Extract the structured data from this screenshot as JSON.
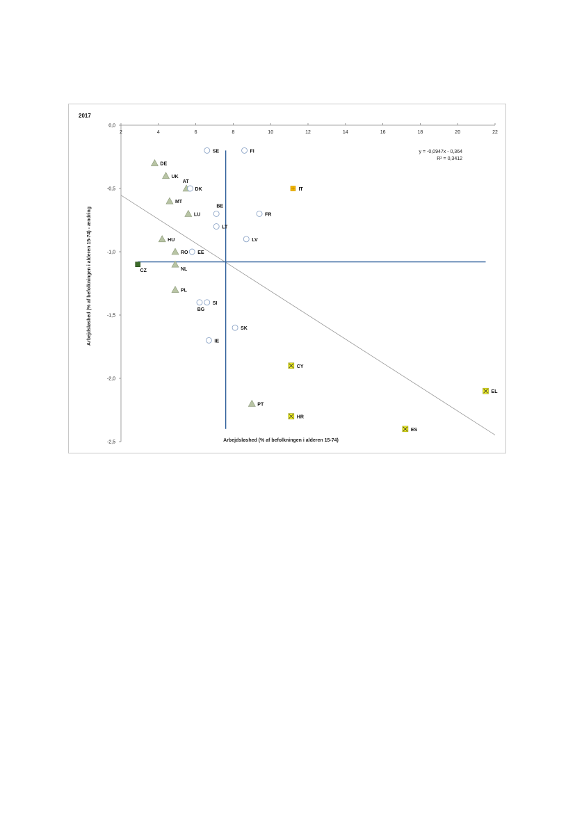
{
  "chart_data": {
    "type": "scatter",
    "title": "2017",
    "xlabel": "Arbejdsløshed  (% af befolkningen i alderen 15-74)",
    "ylabel": "Arbejdsløshed  (% af befolkningen i alderen 15-74) - ændring",
    "xlim": [
      2,
      22
    ],
    "ylim": [
      -2.5,
      0.0
    ],
    "x_ticks": [
      2,
      4,
      6,
      8,
      10,
      12,
      14,
      16,
      18,
      20,
      22
    ],
    "y_ticks": [
      0.0,
      -0.5,
      -1.0,
      -1.5,
      -2.0,
      -2.5
    ],
    "x_tick_labels": [
      "2",
      "4",
      "6",
      "8",
      "10",
      "12",
      "14",
      "16",
      "18",
      "20",
      "22"
    ],
    "y_tick_labels": [
      "0,0",
      "-0,5",
      "-1,0",
      "-1,5",
      "-2,0",
      "-2,5"
    ],
    "trendline": {
      "slope": -0.0947,
      "intercept": -0.364,
      "equation_label": "y = -0,0947x - 0,364",
      "r2_label": "R² = 0,3412"
    },
    "reference_lines": {
      "x": 7.6,
      "y": -1.08
    },
    "marker_colors": {
      "triangle": "#b8c4a4",
      "circle": "#ffffff",
      "circle_stroke": "#8ea6c8",
      "square_dark": "#3d6b2a",
      "square_orange": "#f5b800",
      "square_yellow": "#eeee22",
      "line_blue": "#2e5f9a",
      "trend_gray": "#9a9a9a"
    },
    "points": [
      {
        "label": "SE",
        "x": 6.6,
        "y": -0.2,
        "marker": "circle"
      },
      {
        "label": "FI",
        "x": 8.6,
        "y": -0.2,
        "marker": "circle"
      },
      {
        "label": "DE",
        "x": 3.8,
        "y": -0.3,
        "marker": "triangle"
      },
      {
        "label": "UK",
        "x": 4.4,
        "y": -0.4,
        "marker": "triangle"
      },
      {
        "label": "AT",
        "x": 5.5,
        "y": -0.5,
        "marker": "triangle"
      },
      {
        "label": "DK",
        "x": 5.7,
        "y": -0.5,
        "marker": "circle"
      },
      {
        "label": "IT",
        "x": 11.2,
        "y": -0.5,
        "marker": "square_orange"
      },
      {
        "label": "MT",
        "x": 4.6,
        "y": -0.6,
        "marker": "triangle"
      },
      {
        "label": "LU",
        "x": 5.6,
        "y": -0.7,
        "marker": "triangle"
      },
      {
        "label": "BE",
        "x": 7.1,
        "y": -0.7,
        "marker": "circle"
      },
      {
        "label": "FR",
        "x": 9.4,
        "y": -0.7,
        "marker": "circle"
      },
      {
        "label": "LT",
        "x": 7.1,
        "y": -0.8,
        "marker": "circle"
      },
      {
        "label": "HU",
        "x": 4.2,
        "y": -0.9,
        "marker": "triangle"
      },
      {
        "label": "LV",
        "x": 8.7,
        "y": -0.9,
        "marker": "circle"
      },
      {
        "label": "RO",
        "x": 4.9,
        "y": -1.0,
        "marker": "triangle"
      },
      {
        "label": "EE",
        "x": 5.8,
        "y": -1.0,
        "marker": "circle"
      },
      {
        "label": "CZ",
        "x": 2.9,
        "y": -1.1,
        "marker": "square_dark"
      },
      {
        "label": "NL",
        "x": 4.9,
        "y": -1.1,
        "marker": "triangle"
      },
      {
        "label": "PL",
        "x": 4.9,
        "y": -1.3,
        "marker": "triangle"
      },
      {
        "label": "BG",
        "x": 6.2,
        "y": -1.4,
        "marker": "circle"
      },
      {
        "label": "SI",
        "x": 6.6,
        "y": -1.4,
        "marker": "circle"
      },
      {
        "label": "SK",
        "x": 8.1,
        "y": -1.6,
        "marker": "circle"
      },
      {
        "label": "IE",
        "x": 6.7,
        "y": -1.7,
        "marker": "circle"
      },
      {
        "label": "CY",
        "x": 11.1,
        "y": -1.9,
        "marker": "square_yellow"
      },
      {
        "label": "EL",
        "x": 21.5,
        "y": -2.1,
        "marker": "square_yellow"
      },
      {
        "label": "PT",
        "x": 9.0,
        "y": -2.2,
        "marker": "triangle"
      },
      {
        "label": "HR",
        "x": 11.1,
        "y": -2.3,
        "marker": "square_yellow"
      },
      {
        "label": "ES",
        "x": 17.2,
        "y": -2.4,
        "marker": "square_yellow"
      }
    ]
  }
}
